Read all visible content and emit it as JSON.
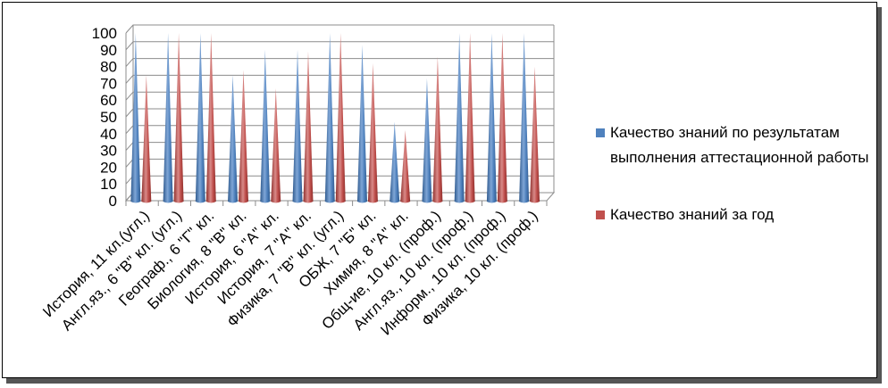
{
  "chart_data": {
    "type": "bar",
    "categories": [
      "История, 11 кл.(угл.)",
      "Англ.яз., 6 \"В\" кл. (угл.)",
      "Географ., 6 \"Г\" кл.",
      "Биология, 8 \"В\" кл.",
      "История, 6 \"А\" кл.",
      "История, 7 \"А\" кл.",
      "Физика, 7 \"В\" кл. (угл.)",
      "ОБЖ, 7 \"Б\" кл.",
      "Химия, 8 \"А\" кл.",
      "Общ-ие, 10 кл. (проф.)",
      "Англ.яз., 10 кл. (проф.)",
      "Информ., 10 кл. (проф.)",
      "Физика, 10 кл. (проф.)"
    ],
    "series": [
      {
        "name": "Качество знаний по результатам выполнения аттестационной работы",
        "color": "#4F81BD",
        "values": [
          100,
          100,
          100,
          75,
          90,
          90,
          100,
          93,
          47,
          73,
          100,
          100,
          100
        ]
      },
      {
        "name": "Качество знаний за год",
        "color": "#C0504D",
        "values": [
          75,
          100,
          100,
          78,
          67,
          89,
          100,
          82,
          42,
          86,
          100,
          100,
          80
        ]
      }
    ],
    "yticks": [
      "0",
      "10",
      "20",
      "30",
      "40",
      "50",
      "60",
      "70",
      "80",
      "90",
      "100"
    ],
    "ylim": [
      0,
      100
    ],
    "grid": true,
    "bar_shape": "cone",
    "legend_position": "right"
  }
}
